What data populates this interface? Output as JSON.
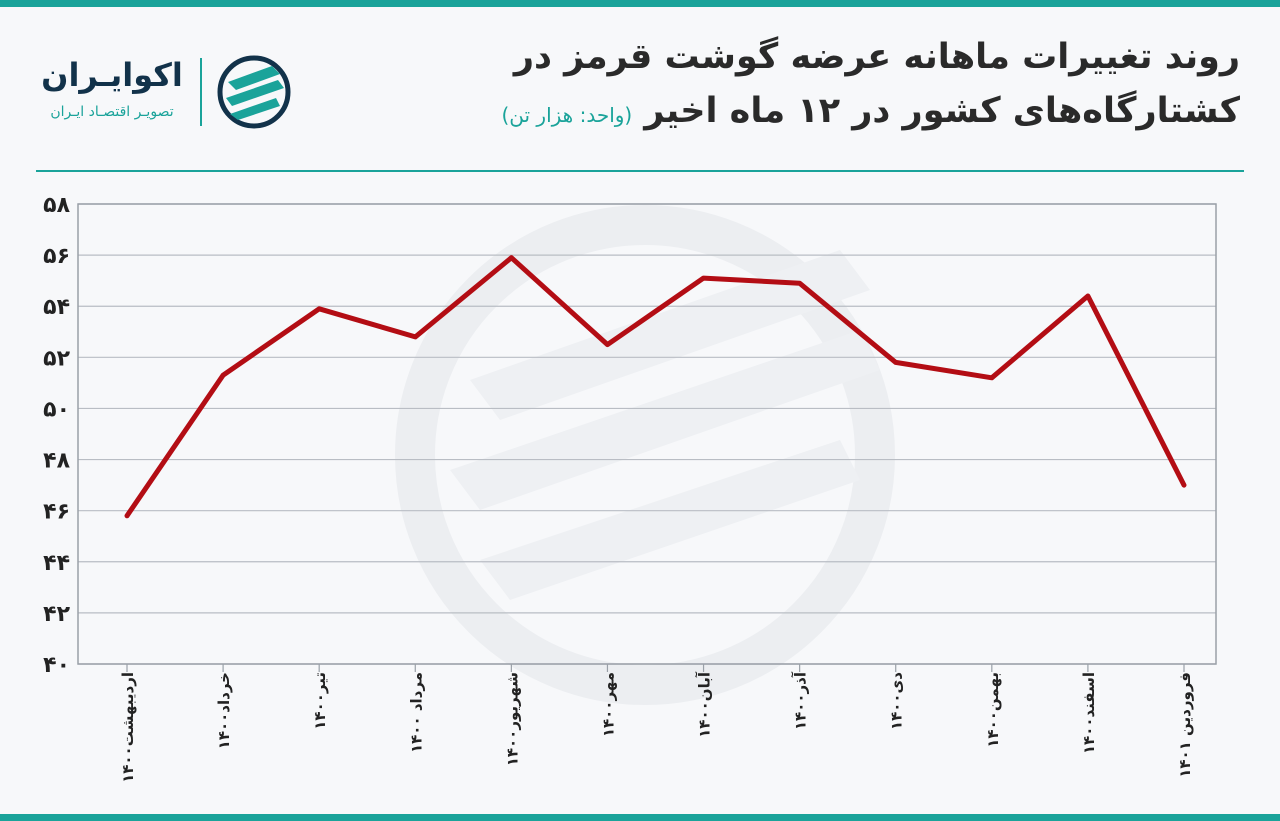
{
  "header": {
    "title_line1": "روند تغییرات ماهانه عرضه گوشت قرمز در",
    "title_line2": "کشتارگاه‌های کشور در ۱۲ ماه اخیر",
    "unit": "(واحد: هزار تن)"
  },
  "logo": {
    "name": "اکوایـران",
    "tagline": "تصویـر اقتصـاد ایـران",
    "icon": "ecoiran-logo-icon"
  },
  "colors": {
    "frame": "#1aa39a",
    "line": "#b30d14",
    "grid": "#b9bdc4",
    "title": "#2a2a2a"
  },
  "chart_data": {
    "type": "line",
    "categories": [
      "اردیبهشت۱۴۰۰",
      "خرداد۱۴۰۰",
      "تیر۱۴۰۰",
      "مرداد ۱۴۰۰",
      "شهریور۱۴۰۰",
      "مهر۱۴۰۰",
      "آبان۱۴۰۰",
      "آذر۱۴۰۰",
      "دی۱۴۰۰",
      "بهمن۱۴۰۰",
      "اسفند۱۴۰۰",
      "فروردین ۱۴۰۱"
    ],
    "series": [
      {
        "values": [
          45.8,
          51.3,
          53.9,
          52.8,
          55.9,
          52.5,
          55.1,
          54.9,
          51.8,
          51.2,
          54.4,
          47.0
        ]
      }
    ],
    "y_ticks": [
      "۴۰",
      "۴۲",
      "۴۴",
      "۴۶",
      "۴۸",
      "۵۰",
      "۵۲",
      "۵۴",
      "۵۶",
      "۵۸"
    ],
    "ylim": [
      40,
      58
    ],
    "grid": "horizontal"
  }
}
